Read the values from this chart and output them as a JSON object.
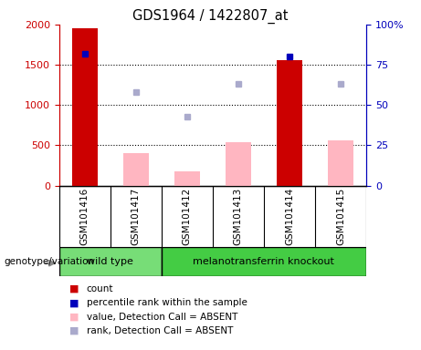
{
  "title": "GDS1964 / 1422807_at",
  "samples": [
    "GSM101416",
    "GSM101417",
    "GSM101412",
    "GSM101413",
    "GSM101414",
    "GSM101415"
  ],
  "count_values": [
    1950,
    null,
    null,
    null,
    1560,
    null
  ],
  "absent_values": [
    null,
    400,
    175,
    540,
    null,
    560
  ],
  "rank_present_left": [
    1640,
    null,
    null,
    null,
    1600,
    null
  ],
  "rank_absent_left": [
    null,
    1160,
    860,
    1260,
    null,
    1260
  ],
  "ylim_left": [
    0,
    2000
  ],
  "ylim_right": [
    0,
    100
  ],
  "yticks_left": [
    0,
    500,
    1000,
    1500,
    2000
  ],
  "ytick_labels_left": [
    "0",
    "500",
    "1000",
    "1500",
    "2000"
  ],
  "yticks_right": [
    0,
    25,
    50,
    75,
    100
  ],
  "ytick_labels_right": [
    "0",
    "25",
    "50",
    "75",
    "100%"
  ],
  "hlines": [
    500,
    1000,
    1500
  ],
  "groups": [
    {
      "label": "wild type",
      "indices": [
        0,
        1
      ],
      "color": "#77DD77"
    },
    {
      "label": "melanotransferrin knockout",
      "indices": [
        2,
        3,
        4,
        5
      ],
      "color": "#44CC44"
    }
  ],
  "genotype_label": "genotype/variation",
  "bar_width": 0.5,
  "color_count": "#CC0000",
  "color_rank_present": "#0000BB",
  "color_absent_bar": "#FFB6C1",
  "color_rank_absent": "#AAAACC",
  "bg_color_sample": "#CCCCCC",
  "left_axis_color": "#CC0000",
  "right_axis_color": "#0000BB",
  "legend_items": [
    {
      "color": "#CC0000",
      "label": "count"
    },
    {
      "color": "#0000BB",
      "label": "percentile rank within the sample"
    },
    {
      "color": "#FFB6C1",
      "label": "value, Detection Call = ABSENT"
    },
    {
      "color": "#AAAACC",
      "label": "rank, Detection Call = ABSENT"
    }
  ]
}
